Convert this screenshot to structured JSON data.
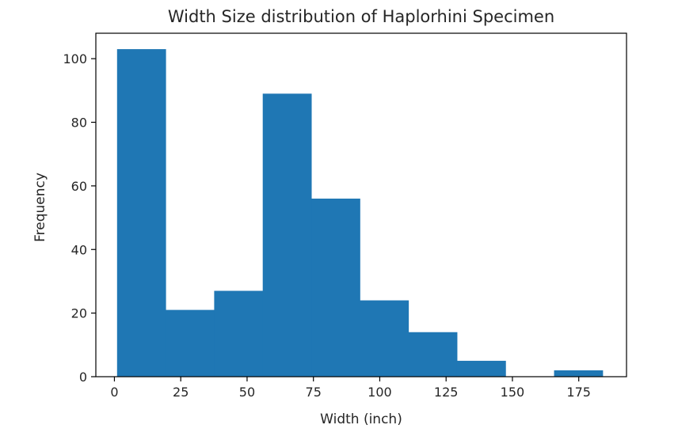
{
  "chart_data": {
    "type": "bar",
    "title": "Width Size distribution of Haplorhini Specimen",
    "xlabel": "Width (inch)",
    "ylabel": "Frequency",
    "bin_edges": [
      1.0,
      19.3,
      37.6,
      55.9,
      74.2,
      92.5,
      110.8,
      129.1,
      147.4,
      165.7,
      184.0
    ],
    "values": [
      103,
      21,
      27,
      89,
      56,
      24,
      14,
      5,
      0,
      2
    ],
    "xlim": [
      -7.0,
      193.0
    ],
    "ylim": [
      0,
      108
    ],
    "xticks": [
      0,
      25,
      50,
      75,
      100,
      125,
      150,
      175
    ],
    "yticks": [
      0,
      20,
      40,
      60,
      80,
      100
    ],
    "bar_color": "#1f77b4",
    "grid": false,
    "legend": false
  }
}
